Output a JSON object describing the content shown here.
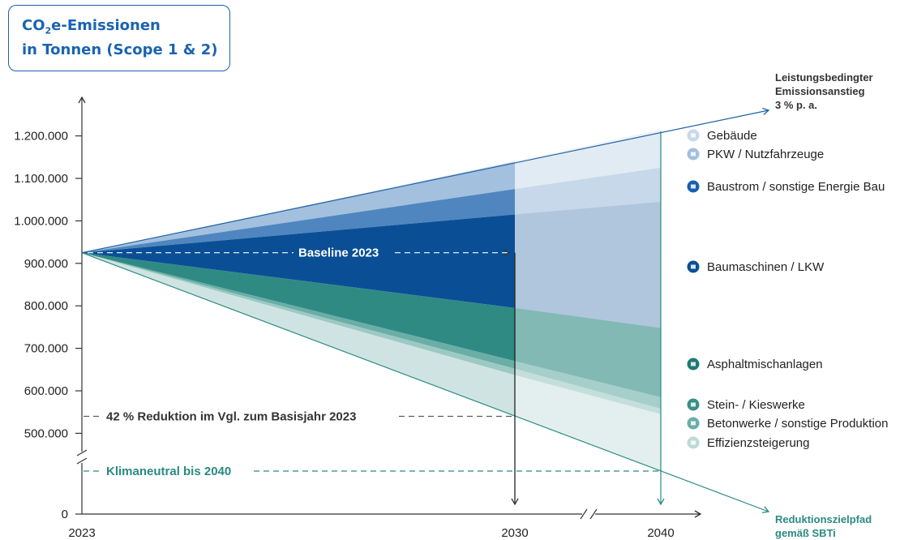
{
  "title": {
    "line1_prefix": "CO",
    "line1_sub": "2",
    "line1_suffix": "e-Emissionen",
    "line2": "in Tonnen (Scope 1 & 2)"
  },
  "colors": {
    "blue_line": "#1f62a5",
    "teal_line": "#2a8a80",
    "gebaeude": "#c9d8eb",
    "pkw": "#a3c0de",
    "baustrom": "#4f86bf",
    "baumaschinen": "#0a4f96",
    "asphalt": "#2f8a84",
    "stein": "#6aaea6",
    "beton": "#9cc9c3",
    "effizienz": "#cfe4e2"
  },
  "annotations": {
    "top_right": [
      "Leistungsbedingter",
      "Emissionsanstieg",
      "3 % p. a."
    ],
    "baseline": "Baseline 2023",
    "reduction": "42 % Reduktion im Vgl. zum Basisjahr 2023",
    "climate_neutral": "Klimaneutral bis 2040",
    "target_path": [
      "Reduktionszielpfad",
      "gemäß SBTi"
    ]
  },
  "chart_data": {
    "type": "area",
    "title": "CO₂e-Emissionen in Tonnen (Scope 1 & 2)",
    "x_categories": [
      "2023",
      "2030",
      "2040"
    ],
    "y_ticks": [
      {
        "value": 1200000,
        "label": "1.200.000"
      },
      {
        "value": 1100000,
        "label": "1.100.000"
      },
      {
        "value": 1000000,
        "label": "1.000.000"
      },
      {
        "value": 900000,
        "label": "900.000"
      },
      {
        "value": 800000,
        "label": "800.000"
      },
      {
        "value": 700000,
        "label": "700.000"
      },
      {
        "value": 600000,
        "label": "600.000"
      },
      {
        "value": 500000,
        "label": "500.000"
      },
      {
        "value": 0,
        "label": "0"
      }
    ],
    "axis_break": true,
    "baseline_2023": 925000,
    "lines": [
      {
        "name": "Leistungsbedingter Emissionsanstieg 3 % p. a.",
        "values": {
          "2023": 925000,
          "2030": 1140000,
          "2040": 1215000
        }
      },
      {
        "name": "Reduktionszielpfad gemäß SBTi",
        "values": {
          "2023": 925000,
          "2030": 540000,
          "2040": 0
        }
      }
    ],
    "bands": [
      {
        "name": "Gebäude",
        "upper": {
          "2023": 925000,
          "2030": 1140000,
          "2040": 1215000
        },
        "lower": {
          "2023": 925000,
          "2030": 1135000,
          "2040": 1205000
        }
      },
      {
        "name": "PKW / Nutzfahrzeuge",
        "upper": {
          "2023": 925000,
          "2030": 1135000,
          "2040": 1205000
        },
        "lower": {
          "2023": 925000,
          "2030": 1075000,
          "2040": 1125000
        }
      },
      {
        "name": "Baustrom / sonstige Energie Bau",
        "upper": {
          "2023": 925000,
          "2030": 1075000,
          "2040": 1125000
        },
        "lower": {
          "2023": 925000,
          "2030": 1015000,
          "2040": 1045000
        }
      },
      {
        "name": "Baumaschinen / LKW",
        "upper": {
          "2023": 925000,
          "2030": 1015000,
          "2040": 1045000
        },
        "lower": {
          "2023": 925000,
          "2030": 795000,
          "2040": 748000
        }
      },
      {
        "name": "Asphaltmischanlagen",
        "upper": {
          "2023": 925000,
          "2030": 795000,
          "2040": 748000
        },
        "lower": {
          "2023": 925000,
          "2030": 670000,
          "2040": 585000
        }
      },
      {
        "name": "Stein- / Kieswerke",
        "upper": {
          "2023": 925000,
          "2030": 670000,
          "2040": 585000
        },
        "lower": {
          "2023": 925000,
          "2030": 652000,
          "2040": 558000
        }
      },
      {
        "name": "Betonwerke / sonstige Produktion",
        "upper": {
          "2023": 925000,
          "2030": 652000,
          "2040": 558000
        },
        "lower": {
          "2023": 925000,
          "2030": 637000,
          "2040": 545000
        }
      },
      {
        "name": "Effizienzsteigerung",
        "upper": {
          "2023": 925000,
          "2030": 637000,
          "2040": 545000
        },
        "lower": {
          "2023": 925000,
          "2030": 540000,
          "2040": 0
        }
      }
    ],
    "legend": [
      {
        "label": "Gebäude",
        "icon": "house-icon"
      },
      {
        "label": "PKW / Nutzfahrzeuge",
        "icon": "car-icon"
      },
      {
        "label": "Baustrom / sonstige Energie Bau",
        "icon": "plug-icon"
      },
      {
        "label": "Baumaschinen / LKW",
        "icon": "excavator-icon"
      },
      {
        "label": "Asphaltmischanlagen",
        "icon": "factory-icon"
      },
      {
        "label": "Stein- / Kieswerke",
        "icon": "crusher-icon"
      },
      {
        "label": "Betonwerke / sonstige Produktion",
        "icon": "concrete-mixer-icon"
      },
      {
        "label": "Effizienzsteigerung",
        "icon": "efficiency-icon"
      }
    ]
  }
}
